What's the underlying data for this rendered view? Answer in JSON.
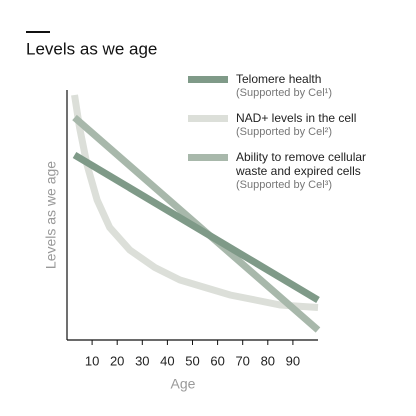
{
  "chart_data": {
    "type": "line",
    "title": "Levels as we age",
    "x_label": "Age",
    "y_label": "Levels as we age",
    "xlim": [
      0,
      100
    ],
    "ylim": [
      0,
      100
    ],
    "xticks": [
      10,
      20,
      30,
      40,
      50,
      60,
      70,
      80,
      90
    ],
    "series": [
      {
        "name": "Telomere health",
        "subtitle": "(Supported by Cel¹)",
        "color": "#7f9a88",
        "x": [
          3,
          100
        ],
        "values": [
          74,
          16
        ]
      },
      {
        "name": "NAD+ levels in the cell",
        "subtitle": "(Supported by Cel²)",
        "color": "#dcdfd9",
        "x": [
          3,
          5,
          8,
          12,
          17,
          25,
          35,
          45,
          55,
          65,
          75,
          85,
          100
        ],
        "values": [
          98,
          85,
          70,
          56,
          45,
          36,
          29,
          24,
          21,
          18,
          16,
          14,
          13
        ]
      },
      {
        "name": "Ability to remove cellular waste and expired cells",
        "subtitle": "(Supported by Cel³)",
        "color": "#a8b8ab",
        "x": [
          3,
          100
        ],
        "values": [
          89,
          4
        ]
      }
    ]
  }
}
